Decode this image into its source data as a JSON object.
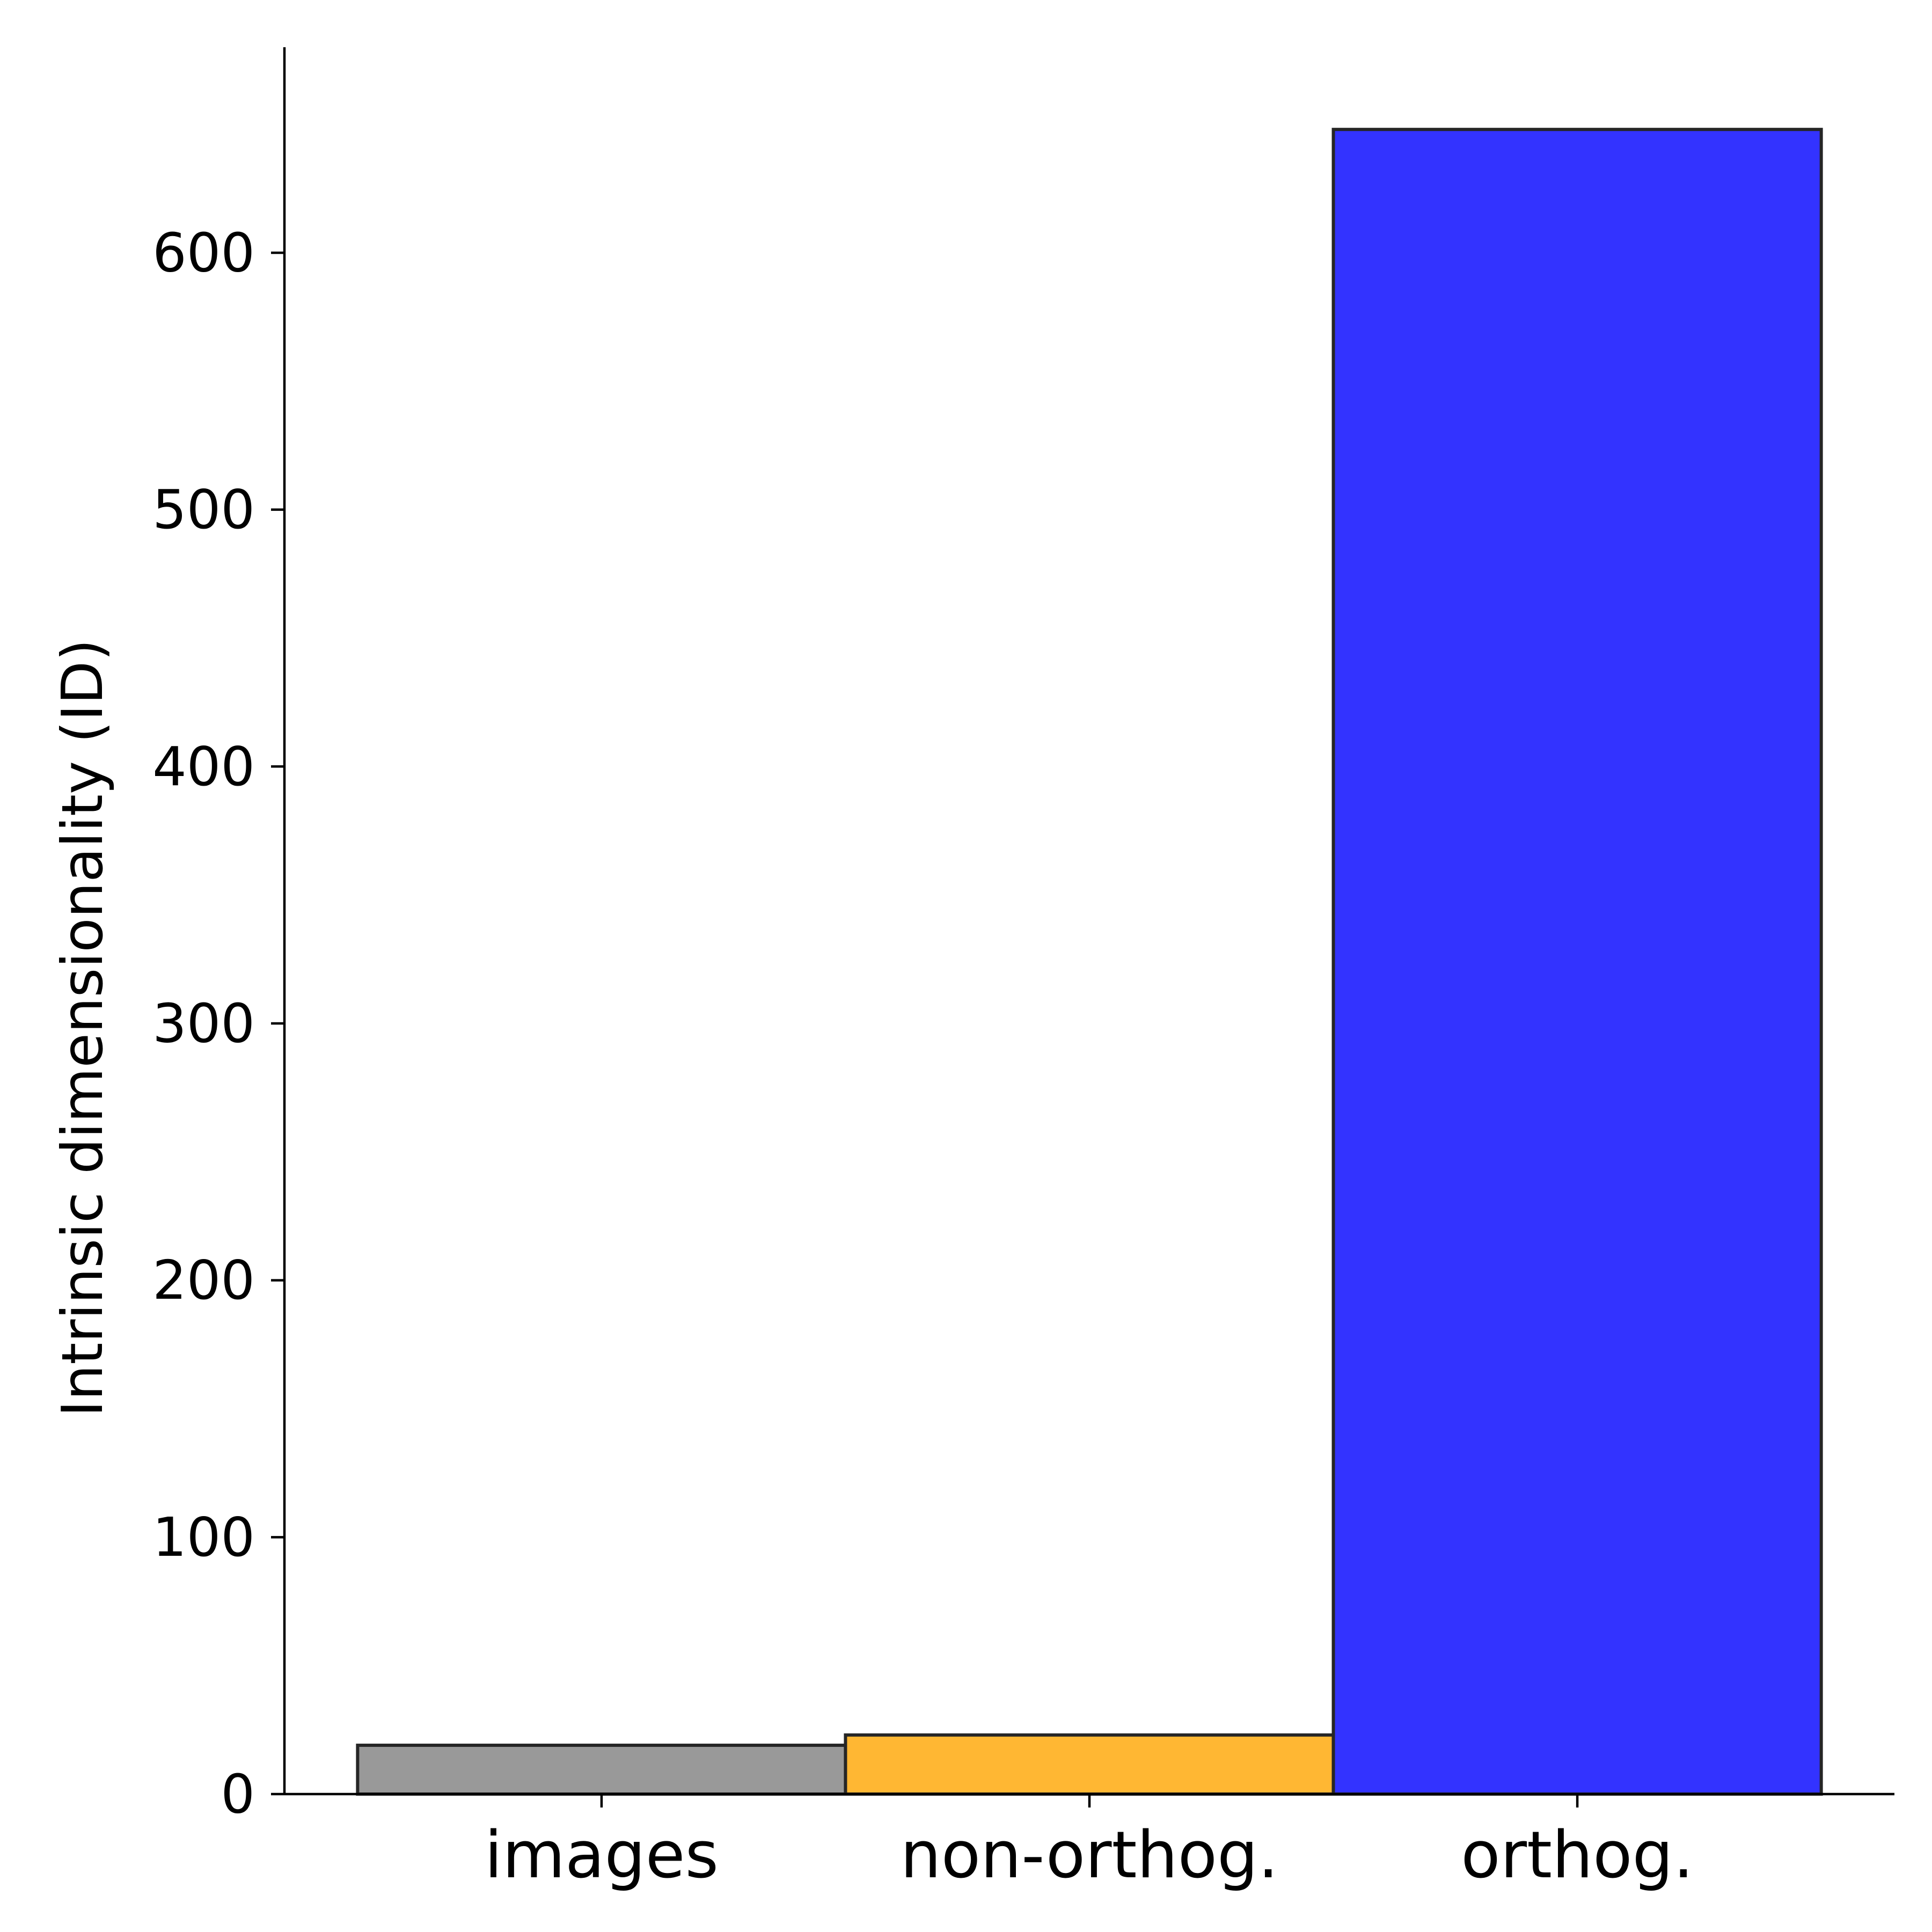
{
  "chart_data": {
    "type": "bar",
    "categories": [
      "images",
      "non-orthog.",
      "orthog."
    ],
    "values": [
      19,
      23,
      648
    ],
    "colors": [
      "#999999",
      "#ffb733",
      "#3333ff"
    ],
    "edge_color": "#262626",
    "title": "",
    "xlabel": "",
    "ylabel": "Intrinsic dimensionality (ID)",
    "ylim": [
      0,
      680
    ],
    "yticks": [
      0,
      100,
      200,
      300,
      400,
      500,
      600
    ],
    "grid": false,
    "legend": "none"
  }
}
